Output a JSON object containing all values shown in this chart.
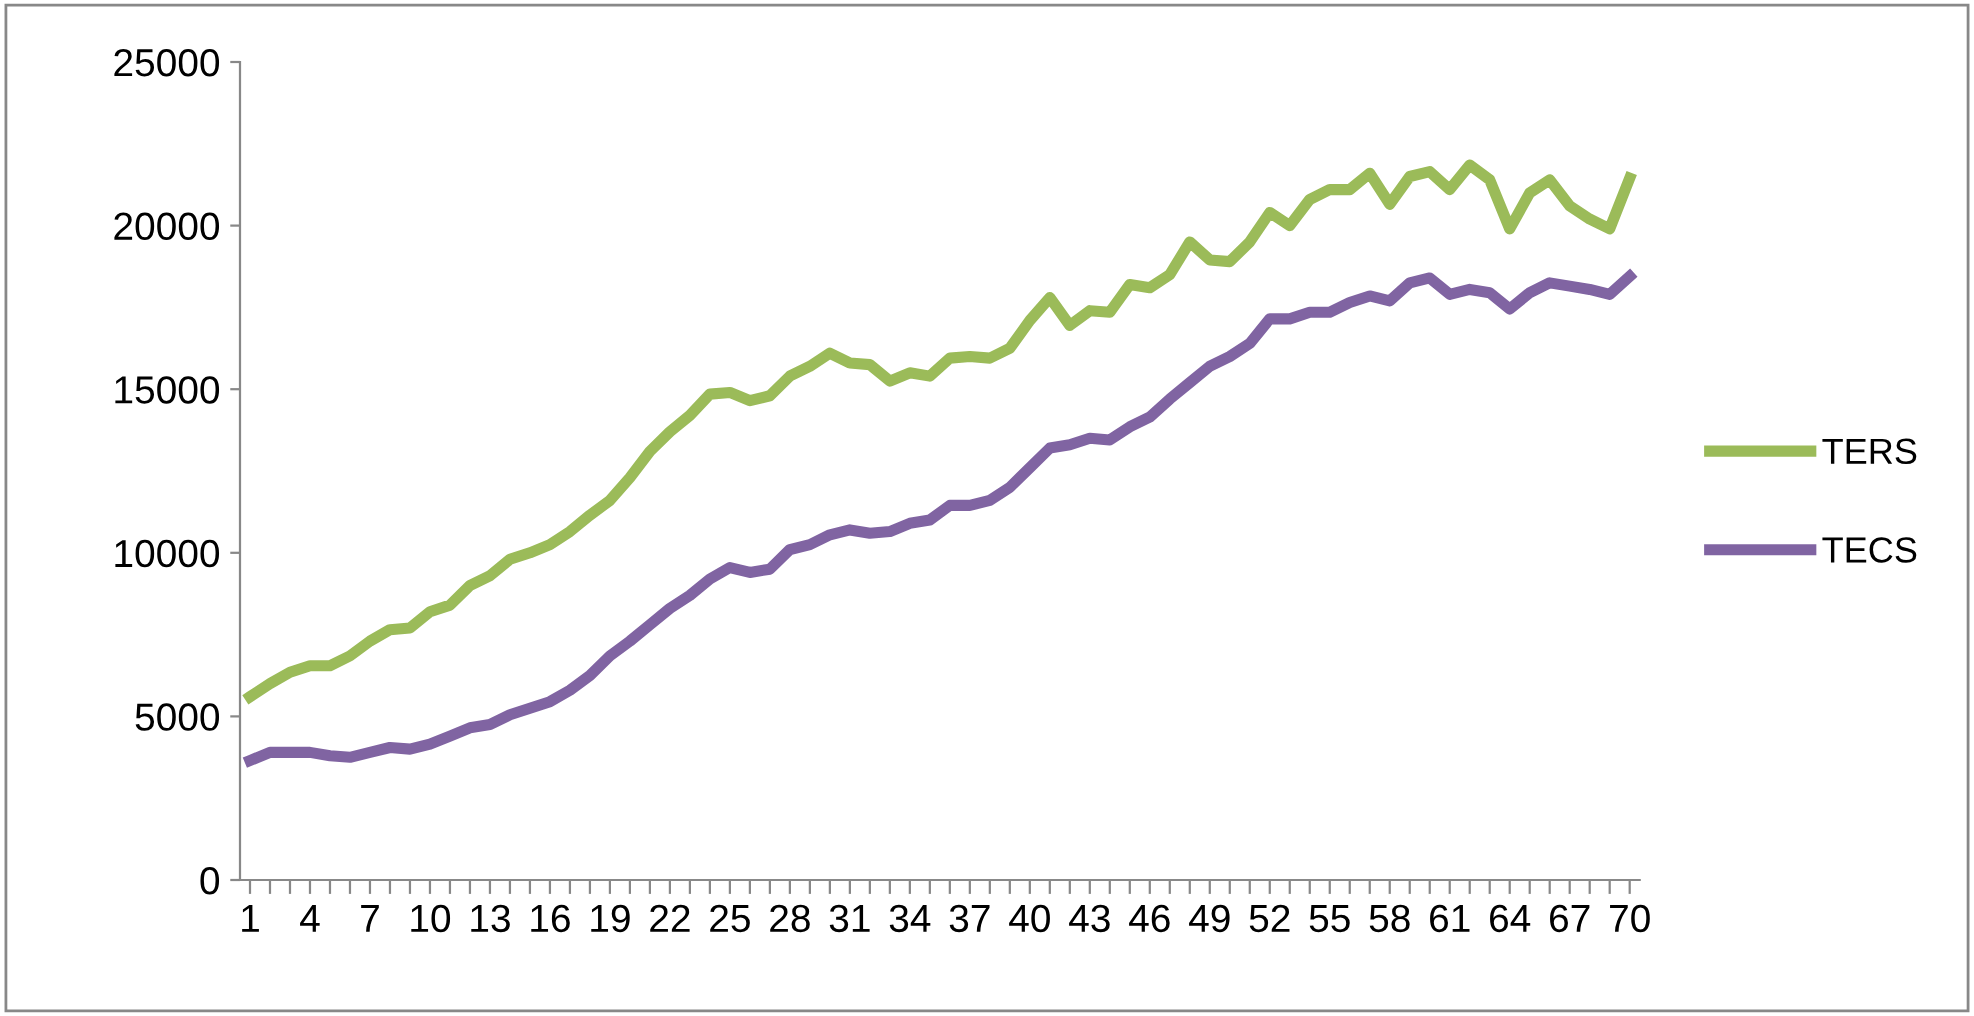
{
  "chart_data": {
    "type": "line",
    "categories": [
      "1",
      null,
      null,
      "4",
      null,
      null,
      "7",
      null,
      null,
      "10",
      null,
      null,
      "13",
      null,
      null,
      "16",
      null,
      null,
      "19",
      null,
      null,
      "22",
      null,
      null,
      "25",
      null,
      null,
      "28",
      null,
      null,
      "31",
      null,
      null,
      "34",
      null,
      null,
      "37",
      null,
      null,
      "40",
      null,
      null,
      "43",
      null,
      null,
      "46",
      null,
      null,
      "49",
      null,
      null,
      "52",
      null,
      null,
      "55",
      null,
      null,
      "58",
      null,
      null,
      "61",
      null,
      null,
      "64",
      null,
      null,
      "67",
      null,
      null,
      "70"
    ],
    "series": [
      {
        "name": "TERS",
        "color": "#9bbb59",
        "values": [
          5600,
          6000,
          6350,
          6550,
          6550,
          6850,
          7300,
          7650,
          7700,
          8200,
          8400,
          9000,
          9300,
          9800,
          10000,
          10250,
          10650,
          11150,
          11600,
          12300,
          13100,
          13700,
          14200,
          14850,
          14900,
          14650,
          14800,
          15400,
          15700,
          16100,
          15800,
          15750,
          15250,
          15500,
          15400,
          15950,
          16000,
          15950,
          16250,
          17100,
          17800,
          16950,
          17400,
          17350,
          18200,
          18100,
          18500,
          19500,
          18950,
          18900,
          19500,
          20400,
          20000,
          20800,
          21100,
          21100,
          21600,
          20650,
          21500,
          21650,
          21100,
          21850,
          21400,
          19900,
          21000,
          21400,
          20600,
          20200,
          19900,
          21450
        ]
      },
      {
        "name": "TECS",
        "color": "#8064a2",
        "values": [
          3650,
          3900,
          3900,
          3900,
          3800,
          3750,
          3900,
          4050,
          4000,
          4150,
          4400,
          4650,
          4750,
          5050,
          5250,
          5450,
          5800,
          6250,
          6850,
          7300,
          7800,
          8300,
          8700,
          9200,
          9550,
          9400,
          9500,
          10100,
          10250,
          10550,
          10700,
          10600,
          10650,
          10900,
          11000,
          11450,
          11450,
          11600,
          12000,
          12600,
          13200,
          13300,
          13500,
          13450,
          13850,
          14150,
          14700,
          15200,
          15700,
          16000,
          16400,
          17150,
          17150,
          17350,
          17350,
          17650,
          17850,
          17700,
          18250,
          18400,
          17900,
          18050,
          17950,
          17450,
          17950,
          18250,
          18150,
          18050,
          17900,
          18450
        ]
      }
    ],
    "ylim": [
      0,
      25000
    ],
    "yticks": [
      0,
      5000,
      10000,
      15000,
      20000,
      25000
    ],
    "grid": false,
    "legend": "right",
    "marker": "none",
    "line_style": "solid"
  }
}
